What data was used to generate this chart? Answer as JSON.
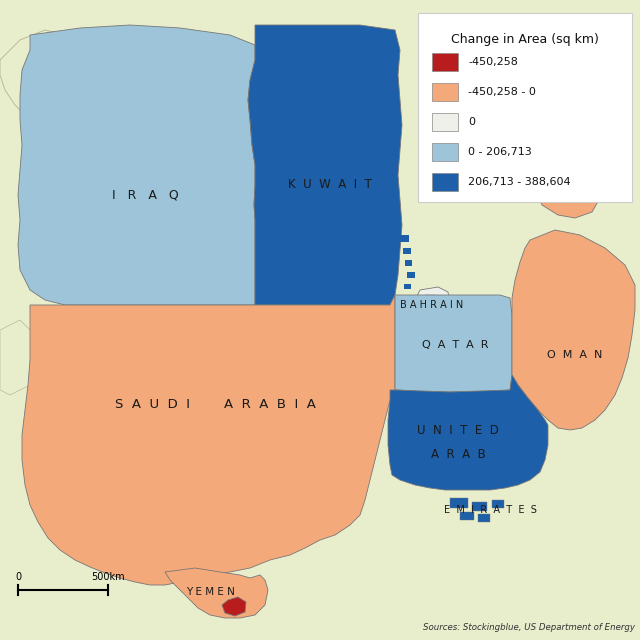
{
  "title": "Change in Area (sq km)",
  "background_color": "#e8edcc",
  "ocean_color": "#ffffff",
  "legend_colors": {
    "-450,258": "#b91c1c",
    "-450,258 - 0": "#f4a97a",
    "0": "#f0f0eb",
    "0 - 206,713": "#9dc4d8",
    "206,713 - 388,604": "#1d5fa8"
  },
  "country_colors": {
    "iraq": "#9dc4d8",
    "kuwait": "#1d5fa8",
    "saudi_arabia": "#f4a97a",
    "bahrain": "#f0f0eb",
    "qatar": "#9dc4d8",
    "oman": "#f4a97a",
    "uae": "#1d5fa8",
    "yemen_red": "#b91c1c",
    "yemen_body": "#f4a97a"
  },
  "edge_color": "#777777",
  "source_text": "Sources: Stockingblue, US Department of Energy",
  "legend_items": [
    [
      "-450,258",
      "#b91c1c"
    ],
    [
      "-450,258 - 0",
      "#f4a97a"
    ],
    [
      "0",
      "#f0f0eb"
    ],
    [
      "0 - 206,713",
      "#9dc4d8"
    ],
    [
      "206,713 - 388,604",
      "#1d5fa8"
    ]
  ]
}
